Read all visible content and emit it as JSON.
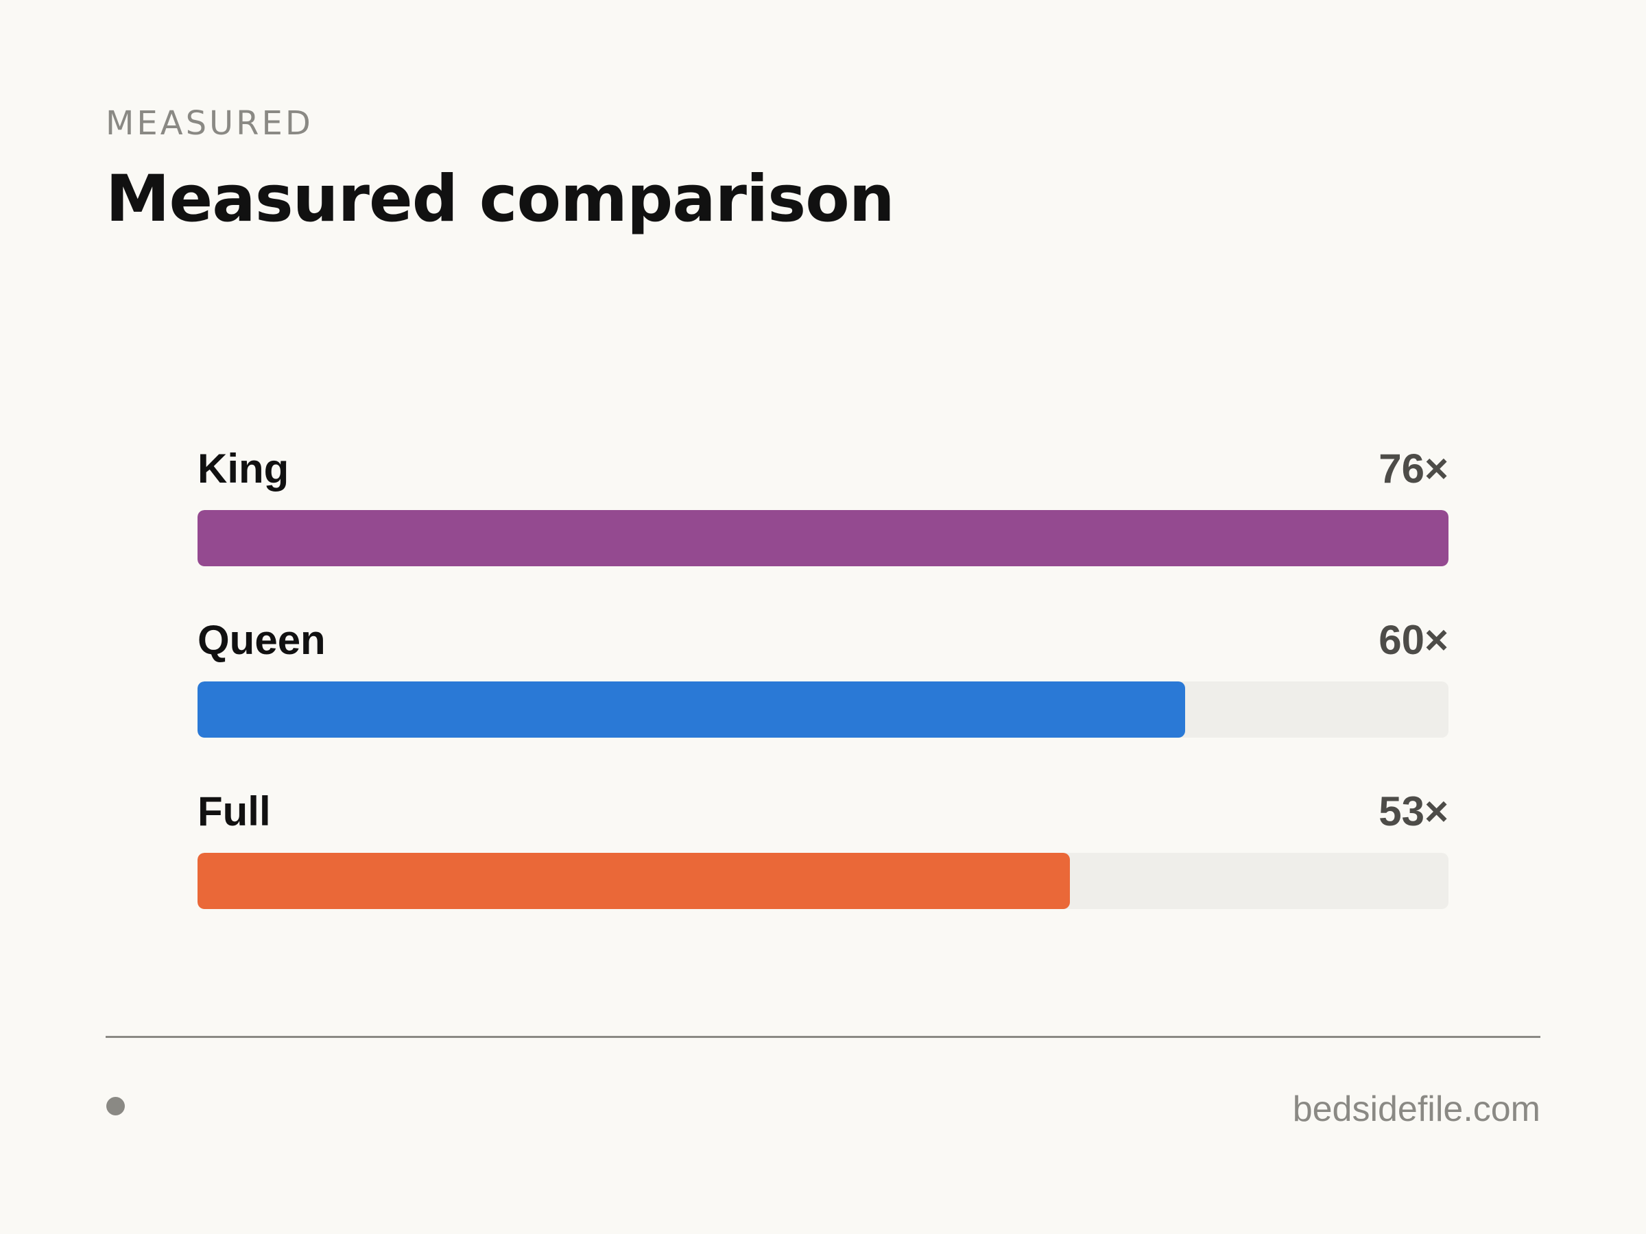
{
  "header": {
    "eyebrow": "MEASURED",
    "title": "Measured comparison"
  },
  "footer": {
    "url": "bedsidefile.com",
    "dot_icon": "bullet-dot-icon"
  },
  "colors": {
    "background": "#faf9f5",
    "track": "#efeeea",
    "king": "#944a90",
    "queen": "#2a79d6",
    "full": "#ea6838"
  },
  "chart_data": {
    "type": "bar",
    "orientation": "horizontal",
    "title": "Measured comparison",
    "categories": [
      "King",
      "Queen",
      "Full"
    ],
    "values": [
      76,
      60,
      53
    ],
    "value_labels": [
      "76×",
      "60×",
      "53×"
    ],
    "xlim": [
      0,
      76
    ],
    "colors": [
      "#944a90",
      "#2a79d6",
      "#ea6838"
    ],
    "grid": false,
    "legend": "none"
  }
}
